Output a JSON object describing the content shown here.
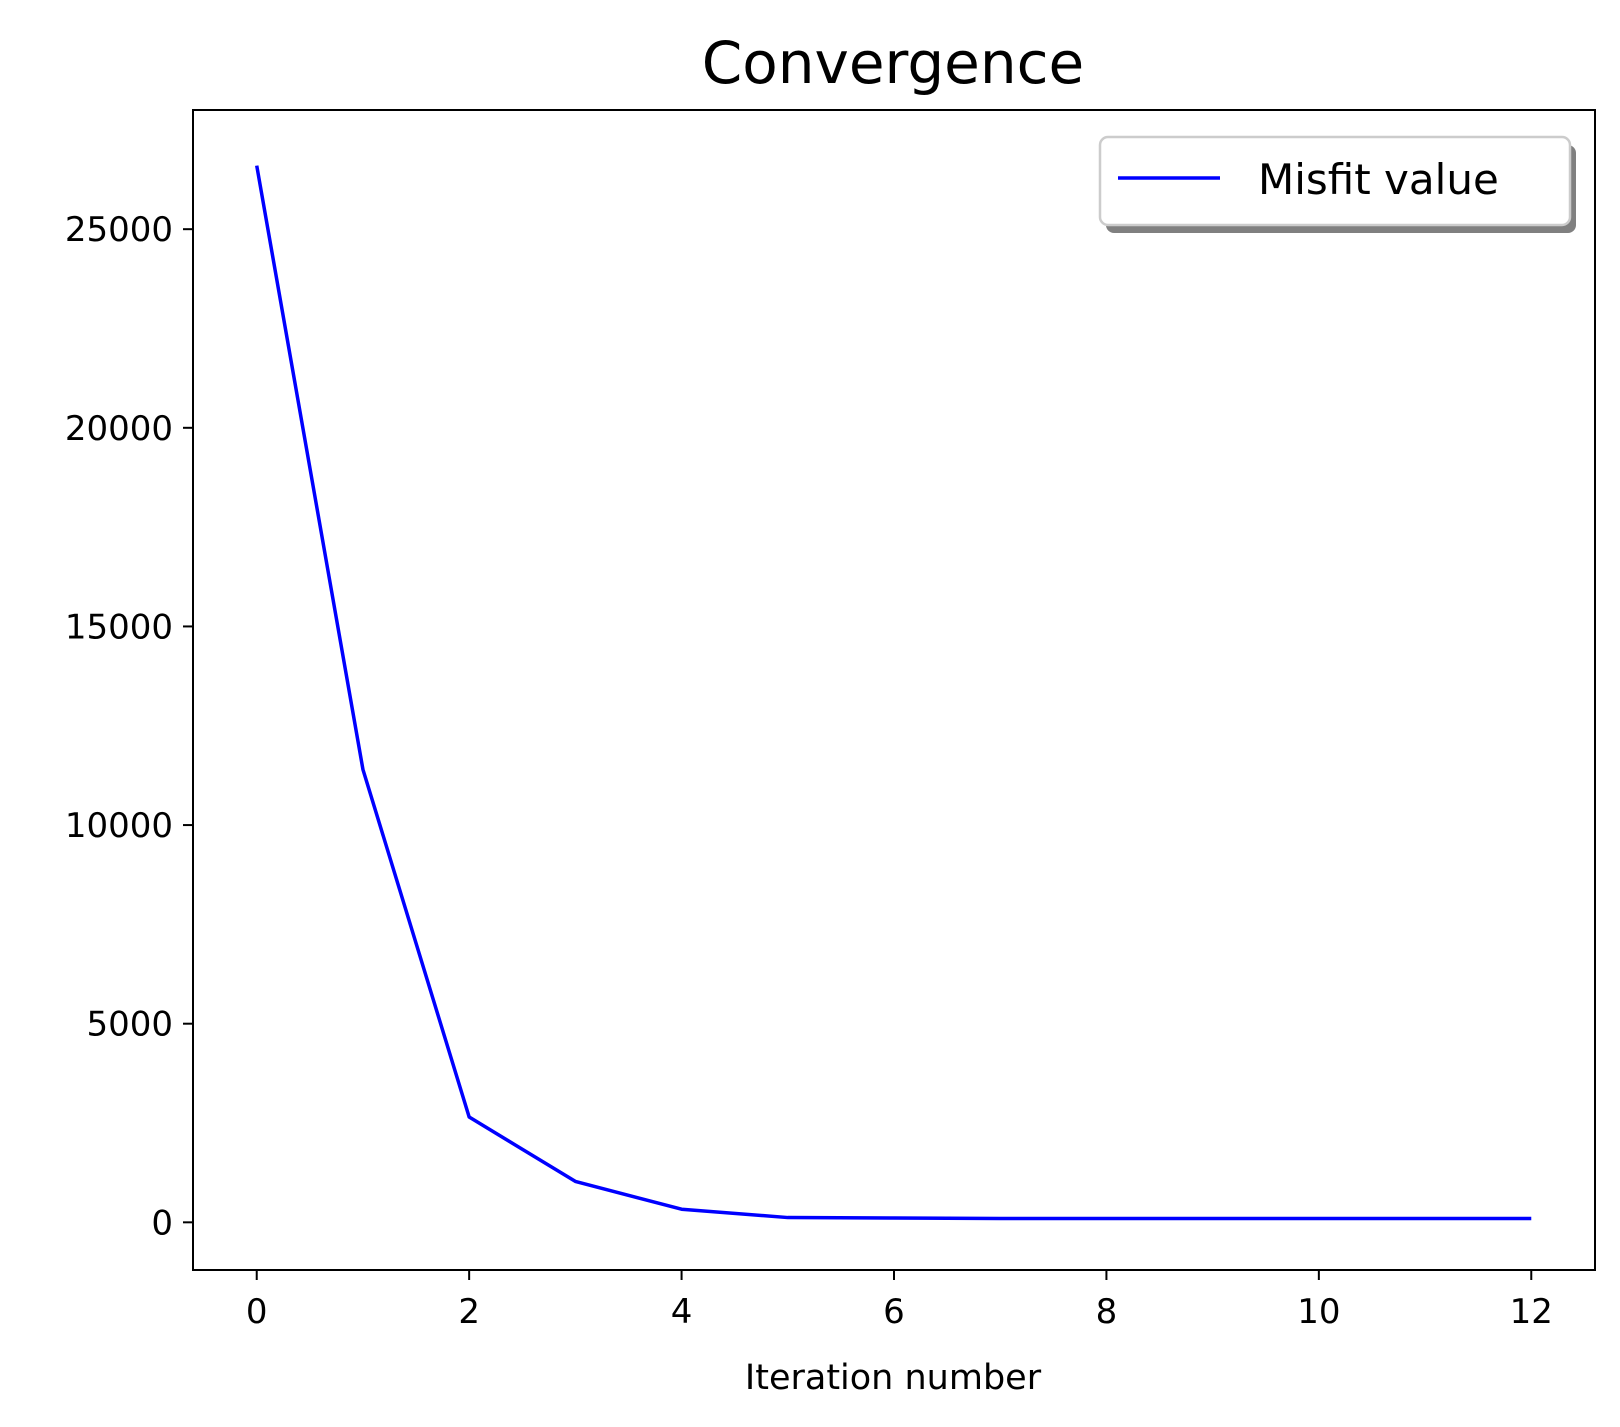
{
  "chart_data": {
    "type": "line",
    "title": "Convergence",
    "xlabel": "Iteration number",
    "ylabel": "",
    "x": [
      0,
      1,
      2,
      3,
      4,
      5,
      6,
      7,
      8,
      9,
      10,
      11,
      12
    ],
    "series": [
      {
        "name": "Misfit value",
        "color": "#0000ff",
        "values": [
          26600,
          11400,
          2650,
          1030,
          330,
          120,
          110,
          95,
          95,
          95,
          95,
          95,
          95
        ]
      }
    ],
    "xlim": [
      -0.6,
      12.6
    ],
    "ylim": [
      -1200,
      28000
    ],
    "xticks": [
      0,
      2,
      4,
      6,
      8,
      10,
      12
    ],
    "yticks": [
      0,
      5000,
      10000,
      15000,
      20000,
      25000
    ],
    "grid": false,
    "legend": {
      "position": "top-right",
      "shadow": true
    }
  }
}
